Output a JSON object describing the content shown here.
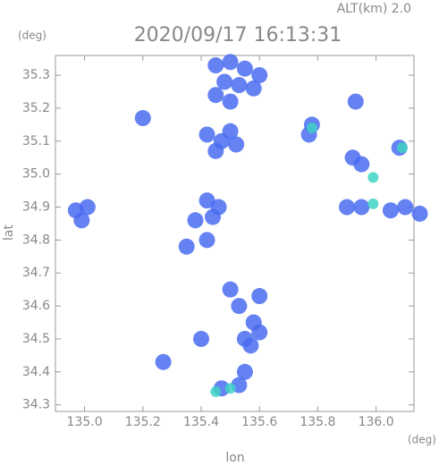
{
  "chart_data": {
    "type": "scatter",
    "title": "2020/09/17 16:13:31",
    "altitude_label": "ALT(km) 2.0",
    "y_unit": "(deg)",
    "x_unit": "(deg)",
    "xlabel": "lon",
    "ylabel": "lat",
    "xlim": [
      134.9,
      136.13
    ],
    "ylim": [
      34.28,
      35.36
    ],
    "xticks": [
      {
        "value": 135,
        "label": "135.0"
      },
      135.2,
      135.4,
      135.6,
      135.8,
      {
        "value": 136,
        "label": "136.0"
      }
    ],
    "yticks": [
      {
        "value": 34.3,
        "label": "34.3"
      },
      {
        "value": 34.4,
        "label": "34.4"
      },
      {
        "value": 34.5,
        "label": "34.5"
      },
      {
        "value": 34.6,
        "label": "34.6"
      },
      {
        "value": 34.7,
        "label": "34.7"
      },
      {
        "value": 34.8,
        "label": "34.8"
      },
      {
        "value": 34.9,
        "label": "34.9"
      },
      {
        "value": 35.0,
        "label": "35.0"
      },
      {
        "value": 35.1,
        "label": "35.1"
      },
      {
        "value": 35.2,
        "label": "35.2"
      },
      {
        "value": 35.3,
        "label": "35.3"
      }
    ],
    "series": [
      {
        "color": "#4a6cf0",
        "x": [
          135.45,
          135.5,
          135.55,
          135.6,
          135.48,
          135.53,
          135.58,
          135.45,
          135.5,
          135.42,
          135.47,
          135.52,
          135.45,
          135.5,
          134.97,
          134.99,
          135.01,
          135.42,
          135.46,
          135.44,
          135.38,
          135.42,
          135.78,
          135.77,
          135.92,
          135.95,
          136.08,
          135.93,
          135.9,
          135.95,
          136.05,
          136.1,
          136.15,
          135.55,
          135.57,
          135.6,
          135.58,
          135.53,
          135.6,
          135.5,
          135.55,
          135.47,
          135.53,
          135.2,
          135.35,
          135.4,
          135.27
        ],
        "values": [
          35.33,
          35.34,
          35.32,
          35.3,
          35.28,
          35.27,
          35.26,
          35.24,
          35.22,
          35.12,
          35.1,
          35.09,
          35.07,
          35.13,
          34.89,
          34.86,
          34.9,
          34.92,
          34.9,
          34.87,
          34.86,
          34.8,
          35.15,
          35.12,
          35.05,
          35.03,
          35.08,
          35.22,
          34.9,
          34.9,
          34.89,
          34.9,
          34.88,
          34.5,
          34.48,
          34.52,
          34.55,
          34.6,
          34.63,
          34.65,
          34.4,
          34.35,
          34.36,
          35.17,
          34.78,
          34.5,
          34.43
        ]
      },
      {
        "color": "#3ed2c4",
        "x": [
          135.78,
          135.99,
          136.09,
          135.45,
          135.5,
          135.99
        ],
        "values": [
          35.14,
          34.91,
          35.08,
          34.34,
          34.35,
          34.99
        ]
      }
    ]
  }
}
